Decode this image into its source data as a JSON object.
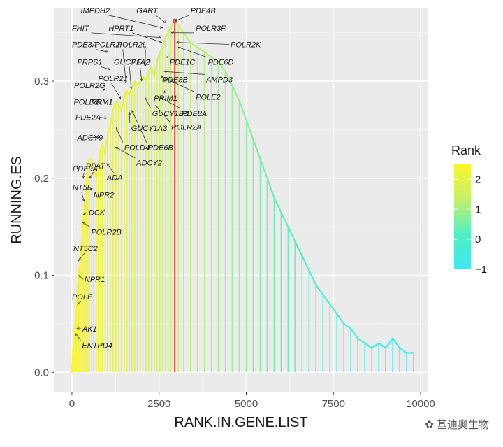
{
  "chart_data": {
    "type": "line",
    "xlabel": "RANK.IN.GENE.LIST",
    "ylabel": "RUNNING.ES",
    "xlim": [
      -500,
      10200
    ],
    "ylim": [
      -0.02,
      0.375
    ],
    "x_ticks": [
      0,
      2500,
      5000,
      7500,
      10000
    ],
    "x_tick_labels": [
      "0",
      "2500",
      "5000",
      "7500",
      "10000"
    ],
    "y_ticks": [
      0.0,
      0.1,
      0.2,
      0.3
    ],
    "y_tick_labels": [
      "0.0",
      "0.1",
      "0.2",
      "0.3"
    ],
    "grid": true,
    "peak": {
      "x": 2950,
      "y": 0.362,
      "color": "#e8574a"
    },
    "legend": {
      "title": "Rank",
      "position": "right",
      "range": [
        -1,
        2.5
      ],
      "ticks": [
        2,
        1,
        0,
        -1
      ],
      "tick_labels": [
        "2",
        "1",
        "0",
        "−1"
      ],
      "colors": [
        "#3ee8f0",
        "#4ff0c4",
        "#c5f06a",
        "#fbf52a"
      ]
    },
    "series": [
      {
        "points": [
          [
            0,
            0.0
          ],
          [
            40,
            0.03
          ],
          [
            70,
            0.035
          ],
          [
            100,
            0.05
          ],
          [
            130,
            0.06
          ],
          [
            160,
            0.085
          ],
          [
            190,
            0.1
          ],
          [
            220,
            0.11
          ],
          [
            260,
            0.125
          ],
          [
            300,
            0.145
          ],
          [
            340,
            0.165
          ],
          [
            380,
            0.18
          ],
          [
            420,
            0.2
          ],
          [
            460,
            0.215
          ],
          [
            500,
            0.22
          ],
          [
            560,
            0.22
          ],
          [
            620,
            0.21
          ],
          [
            700,
            0.2
          ],
          [
            760,
            0.21
          ],
          [
            820,
            0.23
          ],
          [
            880,
            0.235
          ],
          [
            950,
            0.225
          ],
          [
            1020,
            0.245
          ],
          [
            1100,
            0.255
          ],
          [
            1180,
            0.27
          ],
          [
            1260,
            0.28
          ],
          [
            1340,
            0.275
          ],
          [
            1420,
            0.27
          ],
          [
            1500,
            0.285
          ],
          [
            1580,
            0.29
          ],
          [
            1650,
            0.285
          ],
          [
            1720,
            0.295
          ],
          [
            1800,
            0.3
          ],
          [
            1880,
            0.295
          ],
          [
            1960,
            0.3
          ],
          [
            2040,
            0.305
          ],
          [
            2120,
            0.3
          ],
          [
            2200,
            0.31
          ],
          [
            2280,
            0.315
          ],
          [
            2360,
            0.305
          ],
          [
            2440,
            0.32
          ],
          [
            2520,
            0.33
          ],
          [
            2600,
            0.335
          ],
          [
            2680,
            0.345
          ],
          [
            2760,
            0.35
          ],
          [
            2840,
            0.355
          ],
          [
            2950,
            0.362
          ],
          [
            3050,
            0.358
          ],
          [
            3200,
            0.35
          ],
          [
            3400,
            0.34
          ],
          [
            3600,
            0.335
          ],
          [
            3800,
            0.33
          ],
          [
            4000,
            0.325
          ],
          [
            4200,
            0.32
          ],
          [
            4400,
            0.31
          ],
          [
            4600,
            0.295
          ],
          [
            4800,
            0.28
          ],
          [
            5000,
            0.26
          ],
          [
            5200,
            0.24
          ],
          [
            5400,
            0.22
          ],
          [
            5600,
            0.2
          ],
          [
            5800,
            0.18
          ],
          [
            6000,
            0.165
          ],
          [
            6200,
            0.15
          ],
          [
            6400,
            0.135
          ],
          [
            6600,
            0.12
          ],
          [
            6800,
            0.105
          ],
          [
            7000,
            0.09
          ],
          [
            7200,
            0.08
          ],
          [
            7400,
            0.07
          ],
          [
            7600,
            0.06
          ],
          [
            7800,
            0.05
          ],
          [
            8000,
            0.045
          ],
          [
            8200,
            0.035
          ],
          [
            8400,
            0.03
          ],
          [
            8600,
            0.025
          ],
          [
            8800,
            0.03
          ],
          [
            9000,
            0.025
          ],
          [
            9200,
            0.035
          ],
          [
            9400,
            0.025
          ],
          [
            9600,
            0.02
          ],
          [
            9800,
            0.02
          ]
        ]
      }
    ],
    "genes": [
      {
        "name": "ENTPD4",
        "x": 100,
        "y": 0.04,
        "lx": 290,
        "ly": 0.025
      },
      {
        "name": "AK1",
        "x": 140,
        "y": 0.045,
        "lx": 300,
        "ly": 0.042
      },
      {
        "name": "POLE",
        "x": 150,
        "y": 0.07,
        "lx": 0,
        "ly": 0.075
      },
      {
        "name": "NPR1",
        "x": 200,
        "y": 0.1,
        "lx": 360,
        "ly": 0.093
      },
      {
        "name": "NT5C2",
        "x": 190,
        "y": 0.115,
        "lx": 40,
        "ly": 0.125
      },
      {
        "name": "POLR2B",
        "x": 300,
        "y": 0.155,
        "lx": 550,
        "ly": 0.142
      },
      {
        "name": "DCK",
        "x": 320,
        "y": 0.162,
        "lx": 480,
        "ly": 0.162
      },
      {
        "name": "NPR2",
        "x": 520,
        "y": 0.19,
        "lx": 620,
        "ly": 0.18
      },
      {
        "name": "NT5E",
        "x": 350,
        "y": 0.176,
        "lx": 20,
        "ly": 0.188
      },
      {
        "name": "ADA",
        "x": 1000,
        "y": 0.215,
        "lx": 1000,
        "ly": 0.198
      },
      {
        "name": "PPAT",
        "x": 500,
        "y": 0.2,
        "lx": 400,
        "ly": 0.21
      },
      {
        "name": "PDE9A",
        "x": 320,
        "y": 0.2,
        "lx": 20,
        "ly": 0.207
      },
      {
        "name": "ADCY2",
        "x": 1250,
        "y": 0.232,
        "lx": 1850,
        "ly": 0.213
      },
      {
        "name": "POLD4",
        "x": 1270,
        "y": 0.252,
        "lx": 1500,
        "ly": 0.229
      },
      {
        "name": "ADCY9",
        "x": 780,
        "y": 0.242,
        "lx": 150,
        "ly": 0.239
      },
      {
        "name": "PDE6B",
        "x": 1720,
        "y": 0.27,
        "lx": 2180,
        "ly": 0.229
      },
      {
        "name": "GUCY1A3",
        "x": 1650,
        "y": 0.268,
        "lx": 1700,
        "ly": 0.249
      },
      {
        "name": "POLR2A",
        "x": 2400,
        "y": 0.275,
        "lx": 2850,
        "ly": 0.25
      },
      {
        "name": "PDE2A",
        "x": 1000,
        "y": 0.262,
        "lx": 100,
        "ly": 0.26
      },
      {
        "name": "GUCY1B3",
        "x": 2100,
        "y": 0.283,
        "lx": 2300,
        "ly": 0.264
      },
      {
        "name": "PDE8A",
        "x": 2550,
        "y": 0.283,
        "lx": 3150,
        "ly": 0.264
      },
      {
        "name": "POLD1",
        "x": 850,
        "y": 0.276,
        "lx": 50,
        "ly": 0.276
      },
      {
        "name": "RRM1",
        "x": 1150,
        "y": 0.28,
        "lx": 550,
        "ly": 0.276
      },
      {
        "name": "PRIM1",
        "x": 2650,
        "y": 0.29,
        "lx": 2350,
        "ly": 0.28
      },
      {
        "name": "POLE2",
        "x": 2550,
        "y": 0.305,
        "lx": 3550,
        "ly": 0.281
      },
      {
        "name": "POLR2G",
        "x": 950,
        "y": 0.292,
        "lx": 60,
        "ly": 0.293
      },
      {
        "name": "PDE8B",
        "x": 2600,
        "y": 0.3,
        "lx": 2600,
        "ly": 0.299
      },
      {
        "name": "POLR2J",
        "x": 1400,
        "y": 0.282,
        "lx": 750,
        "ly": 0.3
      },
      {
        "name": "AMPD3",
        "x": 2650,
        "y": 0.31,
        "lx": 3850,
        "ly": 0.299
      },
      {
        "name": "PDE1C",
        "x": 2700,
        "y": 0.325,
        "lx": 2800,
        "ly": 0.317
      },
      {
        "name": "PDE6D",
        "x": 3050,
        "y": 0.335,
        "lx": 3900,
        "ly": 0.317
      },
      {
        "name": "PRPS1",
        "x": 1100,
        "y": 0.312,
        "lx": 150,
        "ly": 0.317
      },
      {
        "name": "GUCY1A2",
        "x": 1700,
        "y": 0.292,
        "lx": 1200,
        "ly": 0.317
      },
      {
        "name": "PFAS",
        "x": 2000,
        "y": 0.3,
        "lx": 1700,
        "ly": 0.317
      },
      {
        "name": "PDE3A",
        "x": 1050,
        "y": 0.33,
        "lx": 0,
        "ly": 0.335
      },
      {
        "name": "POLR2I",
        "x": 1550,
        "y": 0.298,
        "lx": 650,
        "ly": 0.335
      },
      {
        "name": "POLR2L",
        "x": 2100,
        "y": 0.315,
        "lx": 1300,
        "ly": 0.335
      },
      {
        "name": "POLR2K",
        "x": 3000,
        "y": 0.34,
        "lx": 4550,
        "ly": 0.335
      },
      {
        "name": "FHIT",
        "x": 2550,
        "y": 0.345,
        "lx": 0,
        "ly": 0.352
      },
      {
        "name": "HPRT1",
        "x": 2580,
        "y": 0.34,
        "lx": 1050,
        "ly": 0.352
      },
      {
        "name": "POLR3F",
        "x": 2850,
        "y": 0.35,
        "lx": 3550,
        "ly": 0.352
      },
      {
        "name": "IMPDH2",
        "x": 2600,
        "y": 0.355,
        "lx": 250,
        "ly": 0.37
      },
      {
        "name": "GART",
        "x": 2700,
        "y": 0.36,
        "lx": 1850,
        "ly": 0.37
      },
      {
        "name": "PDE4B",
        "x": 2950,
        "y": 0.362,
        "lx": 3400,
        "ly": 0.37
      }
    ]
  },
  "watermark_text": "基迪奥生物"
}
